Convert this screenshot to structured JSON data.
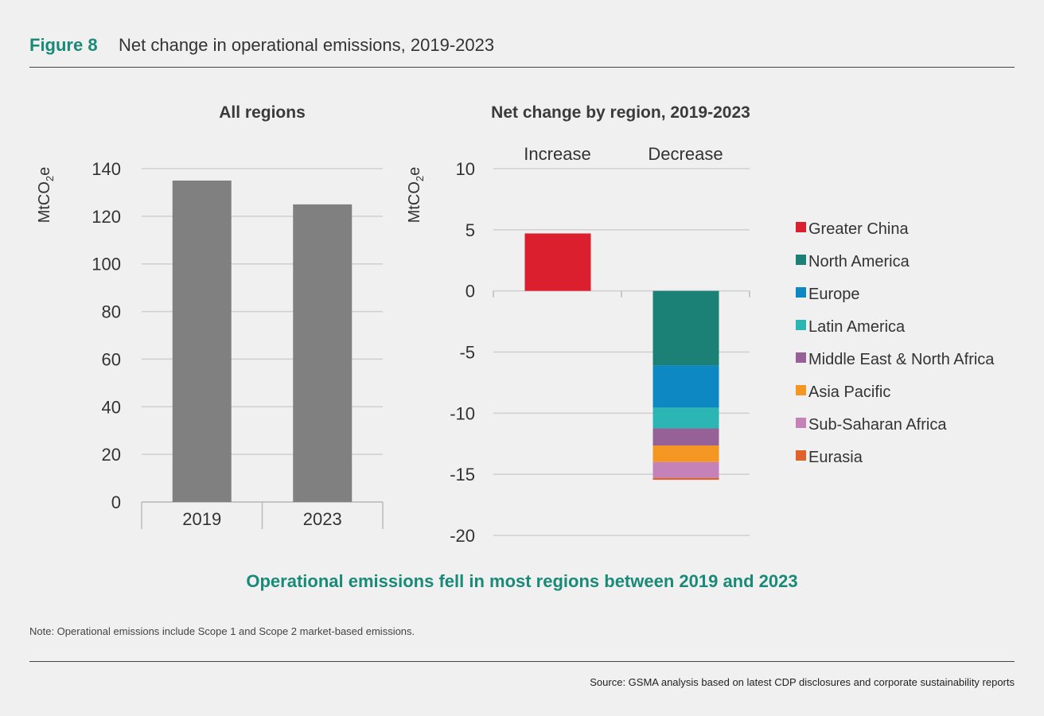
{
  "header": {
    "figure_label": "Figure 8",
    "title": "Net change in operational emissions, 2019-2023"
  },
  "headline": "Operational emissions fell in most regions between 2019 and 2023",
  "note": "Note: Operational emissions include Scope 1 and Scope 2 market-based emissions.",
  "source": "Source: GSMA analysis based on latest CDP disclosures and corporate sustainability reports",
  "chart_data": [
    {
      "type": "bar",
      "title": "All regions",
      "ylabel": "MtCO2e",
      "categories": [
        "2019",
        "2023"
      ],
      "values": [
        135,
        125
      ],
      "ylim": [
        0,
        140
      ],
      "yticks": [
        0,
        20,
        40,
        60,
        80,
        100,
        120,
        140
      ],
      "color": "#808080",
      "grid": true
    },
    {
      "type": "bar",
      "stacked": true,
      "title": "Net change by region, 2019-2023",
      "ylabel": "MtCO2e",
      "categories": [
        "Increase",
        "Decrease"
      ],
      "ylim": [
        -20,
        10
      ],
      "yticks": [
        10,
        5,
        0,
        -5,
        -10,
        -15,
        -20
      ],
      "grid": true,
      "legend": "right",
      "series": [
        {
          "name": "Greater China",
          "color": "#dc1f2e",
          "values": [
            4.7,
            0
          ]
        },
        {
          "name": "North America",
          "color": "#1b8075",
          "values": [
            0,
            -6.1
          ]
        },
        {
          "name": "Europe",
          "color": "#0e88c2",
          "values": [
            0,
            -3.45
          ]
        },
        {
          "name": "Latin America",
          "color": "#2bb5b3",
          "values": [
            0,
            -1.7
          ]
        },
        {
          "name": "Middle East & North Africa",
          "color": "#956196",
          "values": [
            0,
            -1.4
          ]
        },
        {
          "name": "Asia Pacific",
          "color": "#f39722",
          "values": [
            0,
            -1.35
          ]
        },
        {
          "name": "Sub-Saharan Africa",
          "color": "#c482b8",
          "values": [
            0,
            -1.3
          ]
        },
        {
          "name": "Eurasia",
          "color": "#e0622a",
          "values": [
            0,
            -0.15
          ]
        }
      ]
    }
  ]
}
